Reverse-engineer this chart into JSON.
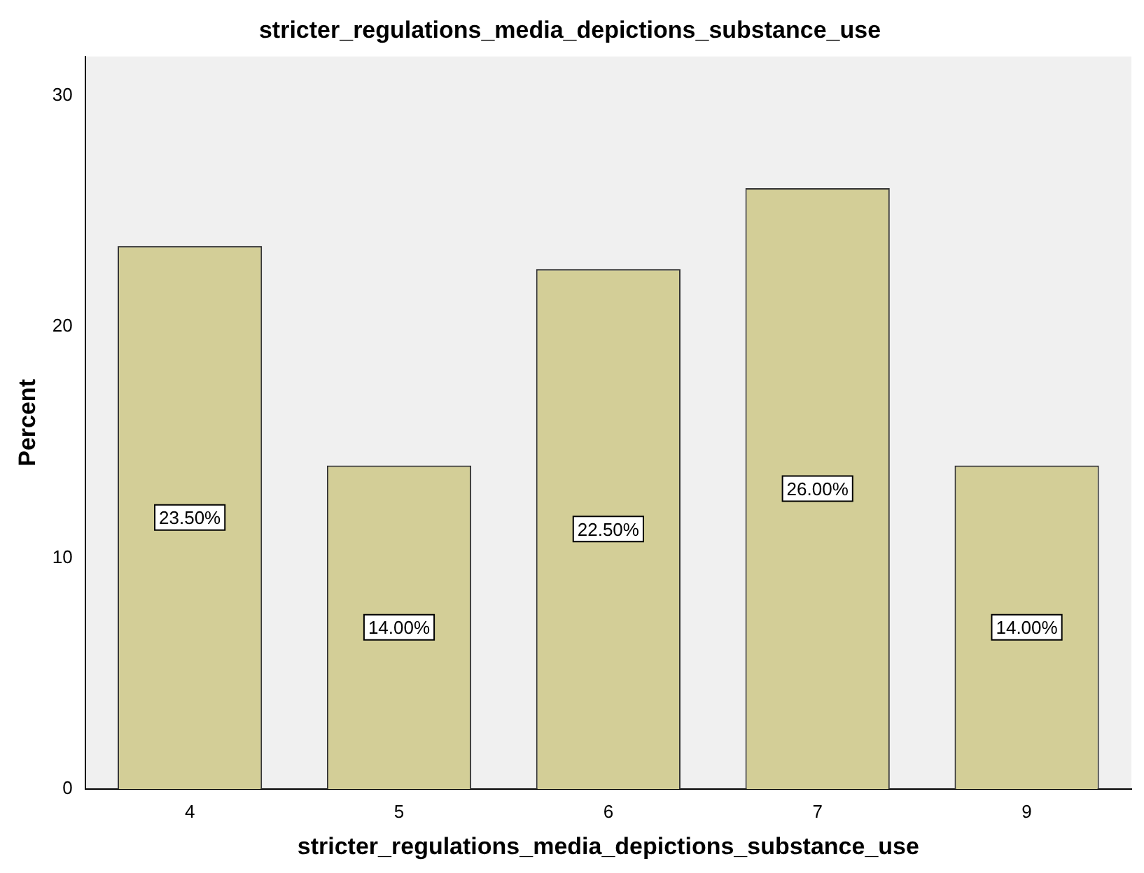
{
  "chart_data": {
    "type": "bar",
    "title": "stricter_regulations_media_depictions_substance_use",
    "xlabel": "stricter_regulations_media_depictions_substance_use",
    "ylabel": "Percent",
    "categories": [
      "4",
      "5",
      "6",
      "7",
      "9"
    ],
    "values": [
      23.5,
      14.0,
      22.5,
      26.0,
      14.0
    ],
    "value_labels": [
      "23.50%",
      "14.00%",
      "22.50%",
      "26.00%",
      "14.00%"
    ],
    "color": "#d3ce97",
    "ylim": [
      0,
      31.7
    ],
    "yticks": [
      0,
      10,
      20,
      30
    ],
    "grid": false,
    "legend": false
  }
}
